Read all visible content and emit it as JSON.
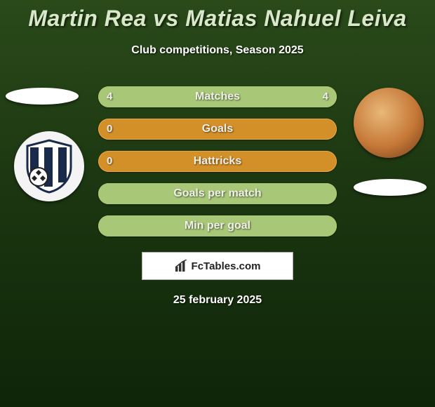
{
  "title": "Martin Rea vs Matias Nahuel Leiva",
  "subtitle": "Club competitions, Season 2025",
  "date": "25 february 2025",
  "watermark": "FcTables.com",
  "colors": {
    "bar_bg": "#d49028",
    "bar_fill": "#a8c878",
    "title_color": "#d8e8c8",
    "text_color": "#ffffff"
  },
  "stats": [
    {
      "label": "Matches",
      "left_val": "4",
      "right_val": "4",
      "left_pct": 50,
      "right_pct": 50,
      "show_vals": true
    },
    {
      "label": "Goals",
      "left_val": "0",
      "right_val": "",
      "left_pct": 0,
      "right_pct": 0,
      "show_vals": true
    },
    {
      "label": "Hattricks",
      "left_val": "0",
      "right_val": "",
      "left_pct": 0,
      "right_pct": 0,
      "show_vals": true
    },
    {
      "label": "Goals per match",
      "left_val": "",
      "right_val": "",
      "left_pct": 100,
      "right_pct": 0,
      "show_vals": false,
      "full_green": true
    },
    {
      "label": "Min per goal",
      "left_val": "",
      "right_val": "",
      "left_pct": 100,
      "right_pct": 0,
      "show_vals": false,
      "full_green": true
    }
  ]
}
